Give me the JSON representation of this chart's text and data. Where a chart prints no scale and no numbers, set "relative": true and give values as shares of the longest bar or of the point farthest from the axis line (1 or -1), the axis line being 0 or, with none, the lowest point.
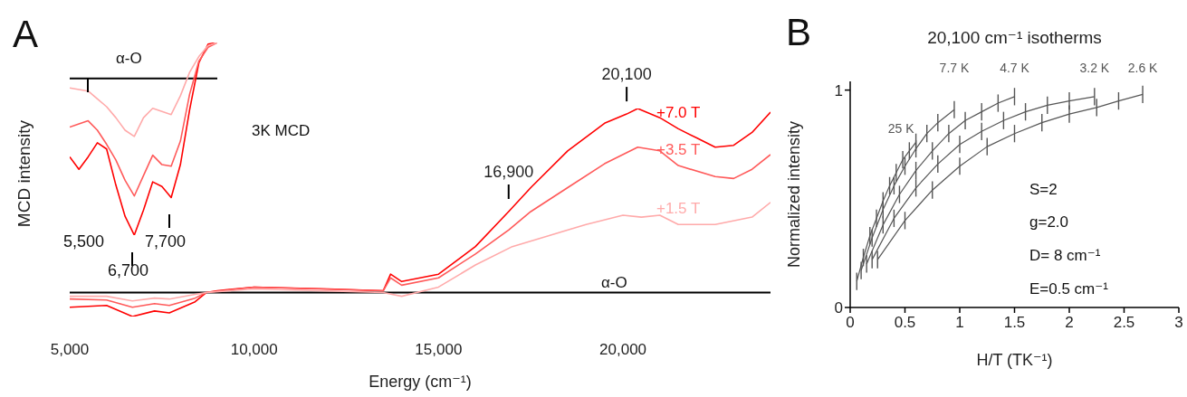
{
  "chart_data": [
    {
      "type": "line",
      "relative": true,
      "xlabel": "Energy (cm⁻¹)",
      "ylabel": "MCD intensity",
      "xlim": [
        5000,
        24000
      ],
      "xticks": [
        {
          "value": 5000,
          "label": "5,000"
        },
        {
          "value": 10000,
          "label": "10,000"
        },
        {
          "value": 15000,
          "label": "15,000"
        },
        {
          "value": 20000,
          "label": "20,000"
        }
      ],
      "annotations": [
        "A",
        "3K MCD",
        "α-O",
        {
          "text": "16,900",
          "x": 16900,
          "y": 0.44
        },
        {
          "text": "20,100",
          "x": 20100,
          "y": 0.97
        }
      ],
      "series": [
        {
          "name": "+7.0 T",
          "color": "#ff0000",
          "x": [
            5000,
            6000,
            6700,
            7300,
            7700,
            8400,
            8700,
            9000,
            10000,
            12000,
            13500,
            13700,
            14000,
            15000,
            16000,
            16900,
            17500,
            18500,
            19500,
            20100,
            20400,
            21000,
            21500,
            22000,
            22500,
            23000,
            23500,
            24000
          ],
          "values": [
            -0.08,
            -0.07,
            -0.13,
            -0.1,
            -0.11,
            -0.05,
            0,
            0.01,
            0.03,
            0.02,
            0.01,
            0.1,
            0.06,
            0.1,
            0.25,
            0.44,
            0.57,
            0.77,
            0.92,
            0.97,
            1,
            0.95,
            0.89,
            0.84,
            0.79,
            0.8,
            0.87,
            0.98
          ]
        },
        {
          "name": "+3.5 T",
          "color": "#ff5a5a",
          "x": [
            5000,
            6000,
            6700,
            7300,
            7700,
            8400,
            8700,
            10000,
            13500,
            13700,
            14000,
            15000,
            16000,
            16900,
            17500,
            18500,
            19500,
            20400,
            21000,
            21500,
            22500,
            23000,
            23500,
            24000
          ],
          "values": [
            -0.035,
            -0.04,
            -0.08,
            -0.06,
            -0.07,
            -0.03,
            0,
            0.03,
            0.01,
            0.08,
            0.04,
            0.08,
            0.21,
            0.34,
            0.44,
            0.57,
            0.7,
            0.79,
            0.77,
            0.69,
            0.63,
            0.62,
            0.67,
            0.75
          ]
        },
        {
          "name": "+1.5 T",
          "color": "#ffaaaa",
          "x": [
            5000,
            6000,
            6700,
            7300,
            7700,
            8400,
            8700,
            10000,
            13500,
            14000,
            15000,
            16000,
            17000,
            18000,
            19000,
            20000,
            20500,
            21000,
            21500,
            22500,
            23500,
            24000
          ],
          "values": [
            -0.02,
            -0.02,
            -0.045,
            -0.03,
            -0.035,
            -0.01,
            0,
            0.02,
            0,
            -0.02,
            0.03,
            0.15,
            0.25,
            0.31,
            0.37,
            0.42,
            0.41,
            0.42,
            0.37,
            0.37,
            0.41,
            0.49
          ]
        }
      ]
    },
    {
      "type": "line",
      "relative": true,
      "categories": [
        null,
        null,
        null,
        null,
        null,
        null,
        null,
        null,
        null,
        null,
        null,
        null,
        null,
        null,
        null,
        null,
        null
      ],
      "annotations": [
        "α-O",
        "5,500",
        "6,700",
        "7,700"
      ],
      "series": [
        {
          "color": "#ff0000",
          "values": [
            -0.5,
            -0.58,
            -0.5,
            -0.41,
            -0.45,
            -0.68,
            -0.88,
            -1,
            -0.84,
            -0.66,
            -0.69,
            -0.76,
            -0.55,
            -0.2,
            0.1,
            0.22,
            0.23
          ]
        },
        {
          "color": "#ff5a5a",
          "values": [
            -0.31,
            -0.29,
            -0.27,
            -0.33,
            -0.42,
            -0.52,
            -0.65,
            -0.75,
            -0.62,
            -0.49,
            -0.55,
            -0.56,
            -0.4,
            -0.1,
            0.11,
            0.2,
            0.23
          ]
        },
        {
          "color": "#ffaaaa",
          "values": [
            -0.06,
            -0.07,
            -0.08,
            -0.13,
            -0.18,
            -0.25,
            -0.33,
            -0.37,
            -0.25,
            -0.19,
            -0.21,
            -0.23,
            -0.11,
            0.04,
            0.14,
            0.21,
            0.23
          ]
        }
      ]
    },
    {
      "type": "line",
      "title": "20,100 cm⁻¹ isotherms",
      "xlabel": "H/T (TK⁻¹)",
      "ylabel": "Normalized intensity",
      "xlim": [
        0,
        3
      ],
      "xticks": [
        0,
        0.5,
        1,
        1.5,
        2,
        2.5,
        3
      ],
      "ylim": [
        0,
        1.04
      ],
      "yticks": [
        0,
        1
      ],
      "annotations": [
        "B",
        "S=2",
        "g=2.0",
        "D= 8 cm⁻¹",
        "E=0.5 cm⁻¹"
      ],
      "series": [
        {
          "name": "25 K",
          "color": "#555555",
          "x": [
            0.06,
            0.12,
            0.18,
            0.24,
            0.3,
            0.36,
            0.42,
            0.48,
            0.54,
            0.6
          ],
          "values": [
            0.12,
            0.23,
            0.33,
            0.41,
            0.49,
            0.56,
            0.62,
            0.68,
            0.72,
            0.76
          ],
          "errors": [
            0.04,
            0.04,
            0.04,
            0.04,
            0.04,
            0.04,
            0.04,
            0.04,
            0.04,
            0.04
          ]
        },
        {
          "name": "7.7 K",
          "color": "#555555",
          "x": [
            0.1,
            0.2,
            0.3,
            0.4,
            0.5,
            0.6,
            0.7,
            0.8,
            0.95
          ],
          "values": [
            0.17,
            0.32,
            0.45,
            0.56,
            0.65,
            0.73,
            0.8,
            0.85,
            0.91
          ],
          "errors": [
            0.04,
            0.04,
            0.04,
            0.04,
            0.04,
            0.04,
            0.04,
            0.04,
            0.04
          ]
        },
        {
          "name": "4.7 K",
          "color": "#555555",
          "x": [
            0.15,
            0.3,
            0.45,
            0.6,
            0.75,
            0.9,
            1.05,
            1.2,
            1.35,
            1.5
          ],
          "values": [
            0.2,
            0.38,
            0.52,
            0.63,
            0.72,
            0.8,
            0.86,
            0.9,
            0.94,
            0.97
          ],
          "errors": [
            0.04,
            0.04,
            0.04,
            0.04,
            0.04,
            0.04,
            0.04,
            0.04,
            0.04,
            0.04
          ]
        },
        {
          "name": "3.2 K",
          "color": "#555555",
          "x": [
            0.2,
            0.4,
            0.6,
            0.8,
            1.0,
            1.2,
            1.4,
            1.6,
            1.8,
            2.0,
            2.23
          ],
          "values": [
            0.22,
            0.41,
            0.55,
            0.66,
            0.75,
            0.81,
            0.86,
            0.9,
            0.93,
            0.95,
            0.97
          ],
          "errors": [
            0.04,
            0.04,
            0.04,
            0.04,
            0.04,
            0.04,
            0.04,
            0.04,
            0.04,
            0.04,
            0.04
          ]
        },
        {
          "name": "2.6 K",
          "color": "#555555",
          "x": [
            0.25,
            0.5,
            0.75,
            1.0,
            1.25,
            1.5,
            1.75,
            2.0,
            2.25,
            2.45,
            2.67
          ],
          "values": [
            0.22,
            0.4,
            0.54,
            0.65,
            0.74,
            0.8,
            0.85,
            0.89,
            0.92,
            0.95,
            0.98
          ],
          "errors": [
            0.04,
            0.04,
            0.04,
            0.04,
            0.04,
            0.04,
            0.04,
            0.04,
            0.04,
            0.04,
            0.04
          ]
        }
      ]
    }
  ]
}
